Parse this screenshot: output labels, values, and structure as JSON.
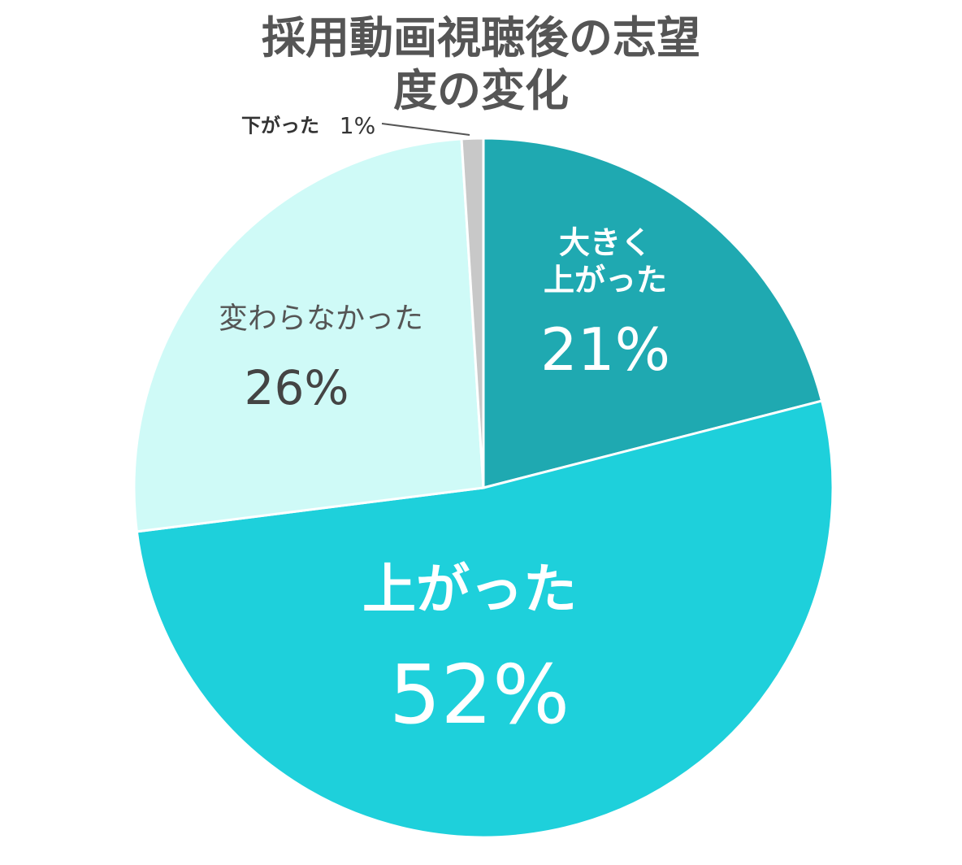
{
  "chart_data": {
    "type": "pie",
    "title": "採用動画視聴後の志望度の変化",
    "categories": [
      "大きく\n上がった",
      "上がった",
      "変わらなかった",
      "下がった"
    ],
    "values": [
      21,
      52,
      26,
      1
    ],
    "value_labels": [
      "21%",
      "52%",
      "26%",
      "1%"
    ],
    "colors": [
      "#1fa9b1",
      "#1ed0db",
      "#cffaf7",
      "#c8c8c8"
    ]
  }
}
